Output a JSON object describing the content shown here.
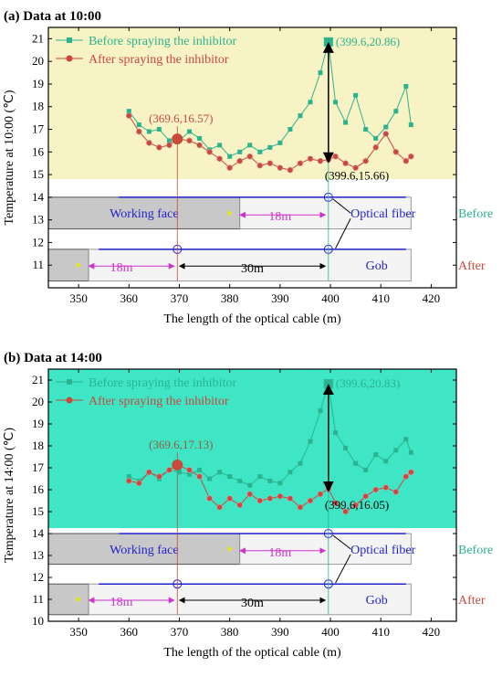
{
  "colors": {
    "before": "#2bb390",
    "after": "#c9493a",
    "panel_a_bg": "#f7f3c4",
    "panel_b_bg": "#3ee6c6",
    "blue": "#2222cc",
    "magenta": "#cc33cc",
    "gray_box": "#c8c8c8",
    "yellow_arrow": "#e8e800"
  },
  "chart_data": [
    {
      "type": "line",
      "title": "(a) Data at 10:00",
      "xlabel": "The length of the optical cable (m)",
      "ylabel": "Temperature at 10:00 (℃)",
      "xlim": [
        344,
        425
      ],
      "ylim": [
        10,
        21.5
      ],
      "xticks": [
        "350",
        "360",
        "370",
        "380",
        "390",
        "400",
        "410",
        "420"
      ],
      "yticks": [
        "11",
        "12",
        "13",
        "14",
        "15",
        "16",
        "17",
        "18",
        "19",
        "20",
        "21"
      ],
      "legend_position": "top-left",
      "series": [
        {
          "name": "Before spraying the inhibitor",
          "x": [
            360,
            362,
            364,
            366,
            368,
            370,
            372,
            374,
            376,
            378,
            380,
            382,
            384,
            386,
            388,
            390,
            392,
            394,
            396,
            398,
            399.6,
            401,
            403,
            405,
            407,
            409,
            411,
            413,
            415,
            416
          ],
          "y": [
            17.8,
            17.2,
            16.9,
            17.0,
            16.5,
            16.5,
            16.9,
            16.6,
            16.1,
            16.3,
            15.8,
            16.0,
            16.3,
            16.0,
            16.2,
            16.4,
            17.0,
            17.6,
            18.2,
            19.5,
            20.86,
            18.2,
            17.3,
            18.5,
            17.0,
            16.6,
            17.1,
            17.8,
            18.9,
            17.2
          ]
        },
        {
          "name": "After spraying the inhibitor",
          "x": [
            360,
            362,
            364,
            366,
            368,
            369.6,
            372,
            374,
            376,
            378,
            380,
            382,
            384,
            386,
            388,
            390,
            392,
            394,
            396,
            398,
            399.6,
            401,
            403,
            405,
            407,
            409,
            411,
            413,
            415,
            416
          ],
          "y": [
            17.6,
            16.9,
            16.4,
            16.2,
            16.3,
            16.57,
            16.5,
            16.3,
            16.0,
            15.7,
            15.3,
            15.6,
            15.8,
            15.4,
            15.5,
            15.3,
            15.2,
            15.5,
            15.7,
            15.6,
            15.66,
            15.8,
            15.5,
            15.3,
            15.6,
            16.2,
            16.8,
            16.0,
            15.6,
            15.8
          ]
        }
      ],
      "annotations": [
        "(399.6,20.86)",
        "(369.6,16.57)",
        "(399.6,15.66)"
      ],
      "diagram": {
        "working_face": "Working face",
        "optical_fiber": "Optical fiber",
        "gob": "Gob",
        "before": "Before",
        "after": "After",
        "dist_18_top": "18m",
        "dist_18_bottom": "18m",
        "dist_30": "30m"
      }
    },
    {
      "type": "line",
      "title": "(b) Data at 14:00",
      "xlabel": "The length of the optical cable (m)",
      "ylabel": "Temperature at 14:00 (℃)",
      "xlim": [
        344,
        425
      ],
      "ylim": [
        10,
        21.5
      ],
      "xticks": [
        "350",
        "360",
        "370",
        "380",
        "390",
        "400",
        "410",
        "420"
      ],
      "yticks": [
        "10",
        "11",
        "12",
        "13",
        "14",
        "15",
        "16",
        "17",
        "18",
        "19",
        "20",
        "21"
      ],
      "legend_position": "top-left",
      "series": [
        {
          "name": "Before spraying the inhibitor",
          "x": [
            360,
            362,
            364,
            366,
            368,
            370,
            372,
            374,
            376,
            378,
            380,
            382,
            384,
            386,
            388,
            390,
            392,
            394,
            396,
            398,
            399.6,
            401,
            403,
            405,
            407,
            409,
            411,
            413,
            415,
            416
          ],
          "y": [
            16.6,
            16.4,
            16.8,
            16.5,
            16.9,
            16.8,
            16.7,
            16.9,
            16.5,
            16.8,
            16.6,
            16.4,
            16.2,
            16.6,
            16.4,
            16.3,
            16.8,
            17.2,
            18.2,
            19.6,
            20.83,
            18.6,
            17.9,
            17.2,
            16.9,
            17.6,
            17.3,
            17.8,
            18.3,
            17.7
          ]
        },
        {
          "name": "After spraying the inhibitor",
          "x": [
            360,
            362,
            364,
            366,
            368,
            369.6,
            372,
            374,
            376,
            378,
            380,
            382,
            384,
            386,
            388,
            390,
            392,
            394,
            396,
            398,
            399.6,
            401,
            403,
            405,
            407,
            409,
            411,
            413,
            415,
            416
          ],
          "y": [
            16.4,
            16.3,
            16.8,
            16.6,
            16.9,
            17.13,
            16.9,
            16.6,
            15.6,
            15.2,
            15.6,
            15.3,
            15.8,
            15.5,
            15.6,
            15.7,
            15.6,
            15.2,
            15.5,
            15.8,
            16.05,
            15.4,
            15.0,
            15.3,
            15.7,
            16.0,
            16.1,
            15.9,
            16.6,
            16.8
          ]
        }
      ],
      "annotations": [
        "(399.6,20.83)",
        "(369.6,17.13)",
        "(399.6,16.05)"
      ],
      "diagram": {
        "working_face": "Working face",
        "optical_fiber": "Optical fiber",
        "gob": "Gob",
        "before": "Before",
        "after": "After",
        "dist_18_top": "18m",
        "dist_18_bottom": "18m",
        "dist_30": "30m"
      }
    }
  ]
}
